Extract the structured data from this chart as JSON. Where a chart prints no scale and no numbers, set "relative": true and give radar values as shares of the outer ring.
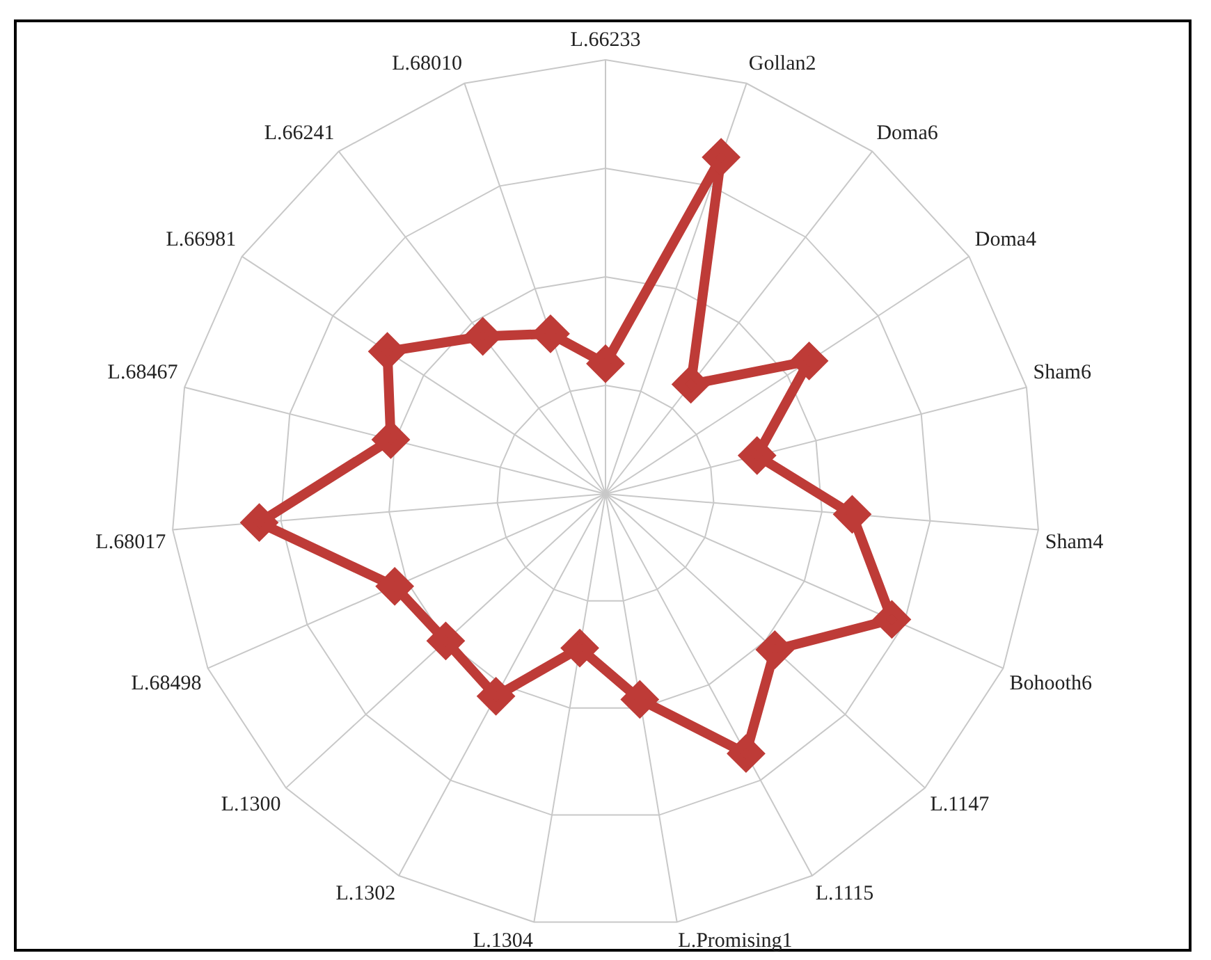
{
  "chart_data": {
    "type": "radar",
    "relative": true,
    "grid": true,
    "marker": "diamond",
    "categories": [
      "L.66233",
      "Gollan2",
      "Doma6",
      "Doma4",
      "Sham6",
      "Sham4",
      "Bohooth6",
      "L.1147",
      "L.1115",
      "L.Promising1",
      "L.1304",
      "L.1302",
      "L.1300",
      "L.68498",
      "L.68017",
      "L.68467",
      "L.66981",
      "L.66241",
      "L.68010"
    ],
    "series": [
      {
        "color": "#be3b37",
        "values": [
          0.3,
          0.82,
          0.32,
          0.56,
          0.36,
          0.57,
          0.72,
          0.53,
          0.68,
          0.48,
          0.36,
          0.53,
          0.5,
          0.53,
          0.8,
          0.51,
          0.6,
          0.46,
          0.39
        ]
      }
    ]
  }
}
